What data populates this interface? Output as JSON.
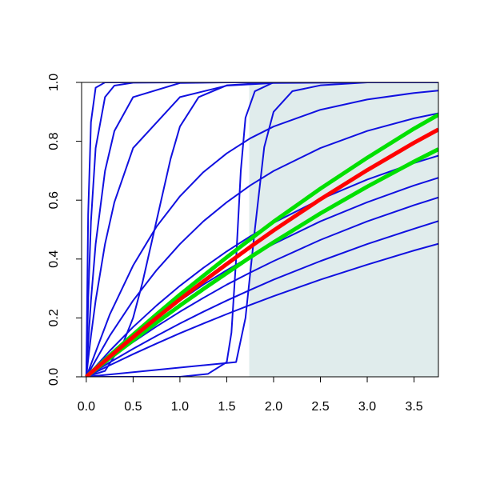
{
  "chart_data": {
    "type": "line",
    "xlim": [
      -0.05,
      3.76
    ],
    "ylim": [
      0,
      1
    ],
    "xticks": [
      {
        "value": 0,
        "label": "0.0"
      },
      {
        "value": 0.5,
        "label": "0.5"
      },
      {
        "value": 1,
        "label": "1.0"
      },
      {
        "value": 1.5,
        "label": "1.5"
      },
      {
        "value": 2,
        "label": "2.0"
      },
      {
        "value": 2.5,
        "label": "2.5"
      },
      {
        "value": 3,
        "label": "3.0"
      },
      {
        "value": 3.5,
        "label": "3.5"
      }
    ],
    "yticks": [
      {
        "value": 0,
        "label": "0.0"
      },
      {
        "value": 0.2,
        "label": "0.2"
      },
      {
        "value": 0.4,
        "label": "0.4"
      },
      {
        "value": 0.6,
        "label": "0.6"
      },
      {
        "value": 0.8,
        "label": "0.8"
      },
      {
        "value": 1,
        "label": "1.0"
      }
    ],
    "highlight_xrange": [
      1.74,
      3.76
    ],
    "highlight_color": "#e0ecec",
    "series": [
      {
        "color": "#1010e0",
        "x": [
          0,
          0.25,
          0.5,
          0.75,
          1,
          1.25,
          1.5,
          1.75,
          2,
          2.5,
          3,
          3.5,
          3.76
        ],
        "values": [
          0,
          0.039,
          0.077,
          0.113,
          0.148,
          0.181,
          0.213,
          0.244,
          0.274,
          0.33,
          0.381,
          0.429,
          0.452
        ]
      },
      {
        "color": "#1010e0",
        "x": [
          0,
          0.25,
          0.5,
          0.75,
          1,
          1.25,
          1.5,
          1.75,
          2,
          2.5,
          3,
          3.5,
          3.76
        ],
        "values": [
          0,
          0.049,
          0.095,
          0.139,
          0.181,
          0.221,
          0.259,
          0.295,
          0.33,
          0.393,
          0.451,
          0.503,
          0.529
        ]
      },
      {
        "color": "#1010e0",
        "x": [
          0,
          0.25,
          0.5,
          0.75,
          1,
          1.25,
          1.5,
          1.75,
          2,
          2.5,
          3,
          3.5,
          3.76
        ],
        "values": [
          0,
          0.061,
          0.118,
          0.171,
          0.221,
          0.268,
          0.313,
          0.354,
          0.393,
          0.465,
          0.528,
          0.583,
          0.609
        ]
      },
      {
        "color": "#1010e0",
        "x": [
          0,
          0.25,
          0.5,
          0.75,
          1,
          1.25,
          1.5,
          1.75,
          2,
          2.5,
          3,
          3.5,
          3.76
        ],
        "values": [
          0,
          0.072,
          0.139,
          0.201,
          0.259,
          0.313,
          0.362,
          0.408,
          0.451,
          0.528,
          0.593,
          0.65,
          0.676
        ]
      },
      {
        "color": "#1010e0",
        "x": [
          0,
          0.25,
          0.5,
          0.75,
          1,
          1.25,
          1.5,
          1.75,
          2,
          2.5,
          3,
          3.5,
          3.76
        ],
        "values": [
          0,
          0.088,
          0.169,
          0.242,
          0.309,
          0.37,
          0.426,
          0.477,
          0.523,
          0.603,
          0.67,
          0.726,
          0.751
        ]
      },
      {
        "color": "#1010e0",
        "x": [
          0,
          0.25,
          0.5,
          0.75,
          1,
          1.25,
          1.5,
          1.75,
          2,
          2.5,
          3,
          3.5,
          3.76
        ],
        "values": [
          0,
          0.139,
          0.259,
          0.362,
          0.451,
          0.528,
          0.593,
          0.65,
          0.699,
          0.777,
          0.835,
          0.878,
          0.895
        ]
      },
      {
        "color": "#1010e0",
        "x": [
          0,
          0.25,
          0.5,
          0.75,
          1,
          1.25,
          1.5,
          1.75,
          2,
          2.5,
          3,
          3.5,
          3.76
        ],
        "values": [
          0,
          0.211,
          0.378,
          0.51,
          0.613,
          0.695,
          0.759,
          0.81,
          0.85,
          0.907,
          0.942,
          0.964,
          0.972
        ]
      },
      {
        "color": "#1010e0",
        "x": [
          0,
          0.02,
          0.05,
          0.1,
          0.2,
          0.3,
          0.5,
          1,
          1.5,
          2,
          3,
          3.76
        ],
        "values": [
          0,
          0.551,
          0.865,
          0.982,
          1,
          1,
          1,
          1,
          1,
          1,
          1,
          1
        ]
      },
      {
        "color": "#1010e0",
        "x": [
          0,
          0.02,
          0.05,
          0.1,
          0.2,
          0.3,
          0.5,
          1,
          1.5,
          2,
          3,
          3.76
        ],
        "values": [
          0,
          0.259,
          0.528,
          0.777,
          0.95,
          0.989,
          0.999,
          1,
          1,
          1,
          1,
          1
        ]
      },
      {
        "color": "#1010e0",
        "x": [
          0,
          0.02,
          0.05,
          0.1,
          0.2,
          0.3,
          0.5,
          1,
          1.5,
          2,
          3,
          3.76
        ],
        "values": [
          0,
          0.113,
          0.259,
          0.451,
          0.699,
          0.835,
          0.95,
          0.998,
          1,
          1,
          1,
          1
        ]
      },
      {
        "color": "#1010e0",
        "x": [
          0,
          0.02,
          0.05,
          0.1,
          0.2,
          0.3,
          0.5,
          1,
          1.5,
          2,
          3,
          3.76
        ],
        "values": [
          0,
          0.058,
          0.139,
          0.259,
          0.451,
          0.593,
          0.777,
          0.95,
          0.989,
          0.998,
          1,
          1
        ]
      },
      {
        "color": "#1010e0",
        "x": [
          0,
          0.2,
          0.4,
          0.5,
          0.6,
          0.7,
          0.8,
          0.9,
          1,
          1.2,
          1.5,
          2,
          3.76
        ],
        "values": [
          0,
          0.02,
          0.12,
          0.2,
          0.32,
          0.46,
          0.6,
          0.74,
          0.85,
          0.95,
          0.99,
          1,
          1
        ]
      },
      {
        "color": "#1010e0",
        "x": [
          0,
          1,
          1.3,
          1.5,
          1.55,
          1.6,
          1.65,
          1.7,
          1.8,
          2,
          3.76
        ],
        "values": [
          0,
          0,
          0.01,
          0.05,
          0.15,
          0.4,
          0.7,
          0.88,
          0.97,
          1,
          1
        ]
      },
      {
        "color": "#1010e0",
        "x": [
          0,
          1.6,
          1.7,
          1.8,
          1.9,
          2,
          2.2,
          2.5,
          3,
          3.76
        ],
        "values": [
          0,
          0.05,
          0.2,
          0.5,
          0.78,
          0.9,
          0.97,
          0.99,
          1,
          1
        ]
      },
      {
        "color": "#00e000",
        "x": [
          0,
          0.25,
          0.5,
          0.75,
          1,
          1.25,
          1.5,
          1.75,
          2,
          2.5,
          3,
          3.5,
          3.76
        ],
        "values": [
          0,
          0.072,
          0.143,
          0.212,
          0.279,
          0.343,
          0.406,
          0.467,
          0.527,
          0.639,
          0.744,
          0.843,
          0.89
        ]
      },
      {
        "color": "#00e000",
        "x": [
          0,
          0.25,
          0.5,
          0.75,
          1,
          1.25,
          1.5,
          1.75,
          2,
          2.5,
          3,
          3.5,
          3.76
        ],
        "values": [
          0,
          0.063,
          0.124,
          0.184,
          0.242,
          0.298,
          0.352,
          0.406,
          0.457,
          0.555,
          0.646,
          0.731,
          0.773
        ]
      },
      {
        "color": "#ff0000",
        "x": [
          0,
          0.25,
          0.5,
          0.75,
          1,
          1.25,
          1.5,
          1.75,
          2,
          2.5,
          3,
          3.5,
          3.76
        ],
        "values": [
          0,
          0.068,
          0.135,
          0.2,
          0.263,
          0.324,
          0.383,
          0.441,
          0.497,
          0.603,
          0.702,
          0.795,
          0.84
        ]
      }
    ]
  }
}
